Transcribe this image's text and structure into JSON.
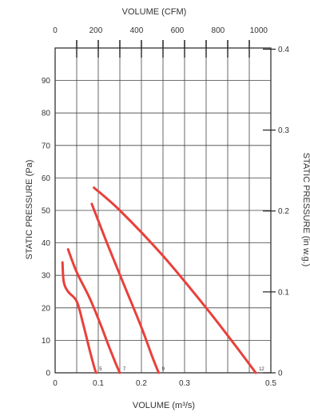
{
  "chart_data": {
    "type": "line",
    "top_axis": {
      "title": "VOLUME (CFM)",
      "ticks": [
        0,
        200,
        400,
        600,
        800,
        1000
      ],
      "tick_labels": [
        "0",
        "200",
        "400",
        "600",
        "800",
        "1000"
      ]
    },
    "bottom_axis": {
      "title": "VOLUME (m³/s)",
      "range": [
        0,
        0.5
      ],
      "ticks": [
        0,
        0.1,
        0.2,
        0.3,
        0.5
      ],
      "tick_labels": [
        "0",
        "0.1",
        "0.2",
        "0.3",
        "0.5"
      ]
    },
    "left_axis": {
      "title": "STATIC PRESSURE (Pa)",
      "range": [
        0,
        100
      ],
      "ticks": [
        0,
        10,
        20,
        30,
        40,
        50,
        60,
        70,
        80,
        90
      ],
      "tick_labels": [
        "0",
        "10",
        "20",
        "30",
        "40",
        "50",
        "60",
        "70",
        "80",
        "90"
      ]
    },
    "right_axis": {
      "title": "STATIC PRESSURE (in w.g.)",
      "ticks": [
        0,
        0.1,
        0.2,
        0.3,
        0.4
      ],
      "tick_labels": [
        "0",
        "0.1",
        "0.2",
        "0.3",
        "0.4"
      ]
    },
    "grid": true,
    "line_color": "#e8413c",
    "series": [
      {
        "label": "5",
        "x": [
          0.017,
          0.02,
          0.03,
          0.05,
          0.065,
          0.08,
          0.09,
          0.095
        ],
        "y": [
          34,
          28,
          25,
          22,
          15,
          7,
          2,
          0
        ]
      },
      {
        "label": "7",
        "x": [
          0.03,
          0.05,
          0.08,
          0.105,
          0.125,
          0.14,
          0.15
        ],
        "y": [
          38,
          31,
          23,
          15,
          8,
          3,
          0
        ]
      },
      {
        "label": "9",
        "x": [
          0.085,
          0.12,
          0.16,
          0.2,
          0.225,
          0.24
        ],
        "y": [
          52,
          40,
          27,
          14,
          5,
          0
        ]
      },
      {
        "label": "12",
        "x": [
          0.09,
          0.15,
          0.25,
          0.35,
          0.42,
          0.465
        ],
        "y": [
          57,
          50,
          36,
          20,
          8,
          0
        ]
      }
    ]
  }
}
